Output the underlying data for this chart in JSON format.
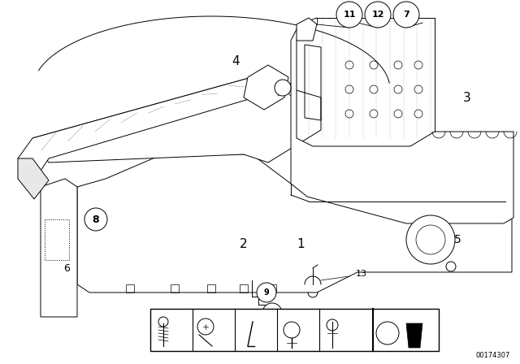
{
  "background_color": "#ffffff",
  "part_number": "00174307",
  "figure_width": 6.4,
  "figure_height": 4.48,
  "dpi": 100,
  "line_color": "#000000",
  "lw": 0.7
}
